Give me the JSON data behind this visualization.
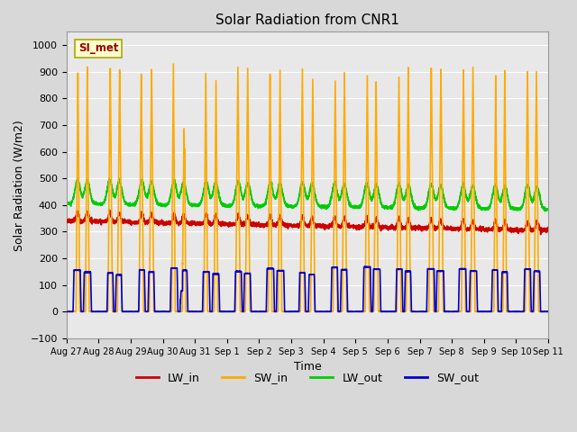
{
  "title": "Solar Radiation from CNR1",
  "xlabel": "Time",
  "ylabel": "Solar Radiation (W/m2)",
  "ylim": [
    -100,
    1050
  ],
  "yticks": [
    -100,
    0,
    100,
    200,
    300,
    400,
    500,
    600,
    700,
    800,
    900,
    1000
  ],
  "fig_bg": "#d8d8d8",
  "plot_bg": "#e8e8e8",
  "label_box_text": "SI_met",
  "label_box_bg": "#ffffcc",
  "label_box_edge": "#aaa800",
  "label_box_text_color": "#990000",
  "series": {
    "LW_in": {
      "color": "#cc0000",
      "lw": 1.2
    },
    "SW_in": {
      "color": "#ffaa00",
      "lw": 1.2
    },
    "LW_out": {
      "color": "#00cc00",
      "lw": 1.2
    },
    "SW_out": {
      "color": "#0000cc",
      "lw": 1.2
    }
  },
  "n_days": 15,
  "pts_per_day": 288,
  "date_labels": [
    "Aug 27",
    "Aug 28",
    "Aug 29",
    "Aug 30",
    "Aug 31",
    "Sep 1",
    "Sep 2",
    "Sep 3",
    "Sep 4",
    "Sep 5",
    "Sep 6",
    "Sep 7",
    "Sep 8",
    "Sep 9",
    "Sep 10",
    "Sep 11"
  ]
}
